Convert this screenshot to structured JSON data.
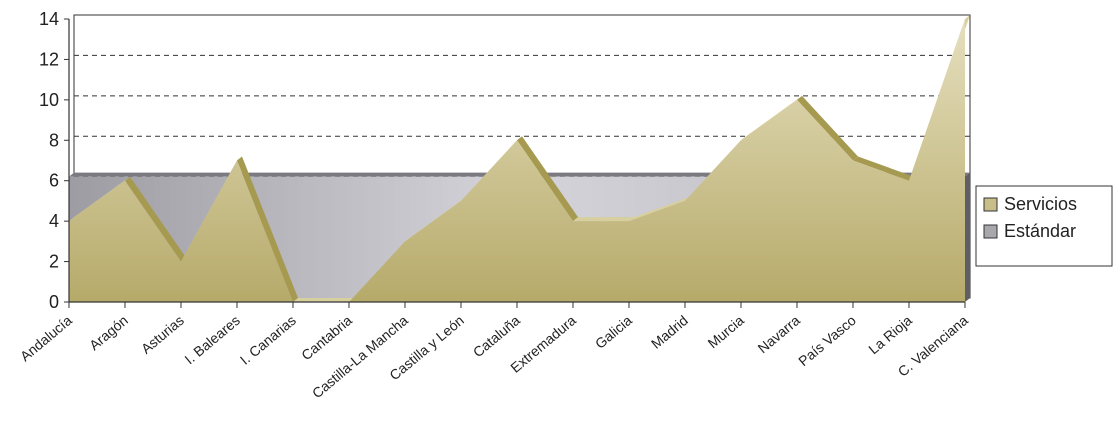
{
  "chart_data": {
    "type": "area",
    "categories": [
      "Andalucía",
      "Aragón",
      "Asturias",
      "I. Baleares",
      "I. Canarias",
      "Cantabria",
      "Castilla-La Mancha",
      "Castilla y León",
      "Cataluña",
      "Extremadura",
      "Galicia",
      "Madrid",
      "Murcia",
      "Navarra",
      "País Vasco",
      "La Rioja",
      "C. Valenciana"
    ],
    "series": [
      {
        "name": "Servicios",
        "values": [
          4,
          6,
          2,
          7,
          0,
          0,
          3,
          5,
          8,
          4,
          4,
          5,
          8,
          10,
          7,
          6,
          14
        ],
        "color": "#c8be88"
      },
      {
        "name": "Estándar",
        "values": [
          6.2,
          6.2,
          6.2,
          6.2,
          6.2,
          6.2,
          6.2,
          6.2,
          6.2,
          6.2,
          6.2,
          6.2,
          6.2,
          6.2,
          6.2,
          6.2,
          6.2
        ],
        "color": "#a8a8ac"
      }
    ],
    "ylim": [
      0,
      14
    ],
    "yticks": [
      "0",
      "2",
      "4",
      "6",
      "8",
      "10",
      "12",
      "14"
    ],
    "gridlines": "dashed",
    "legend": "right"
  }
}
